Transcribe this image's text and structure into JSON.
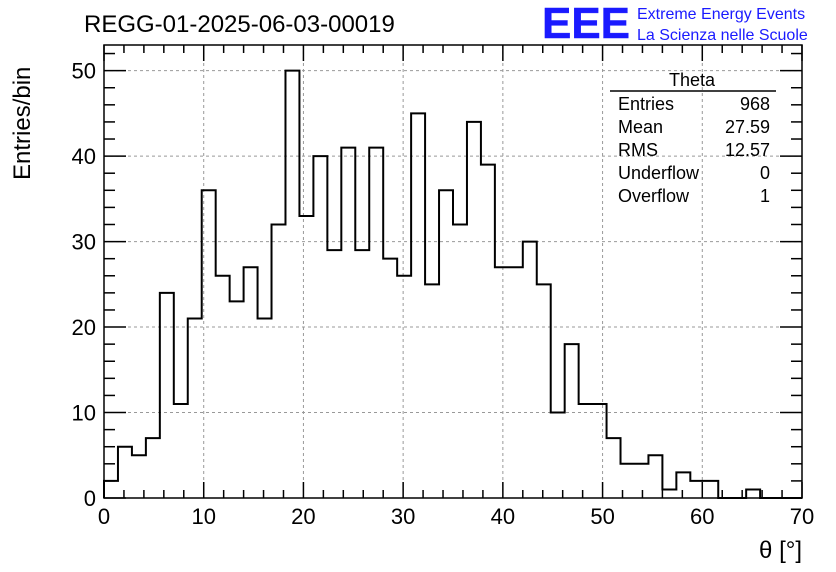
{
  "chart_data": {
    "type": "histogram",
    "title": "REGG-01-2025-06-03-00019",
    "xlabel": "θ [°]",
    "ylabel": "Entries/bin",
    "xlim": [
      0,
      70
    ],
    "ylim": [
      0,
      53
    ],
    "x_ticks": [
      0,
      10,
      20,
      30,
      40,
      50,
      60,
      70
    ],
    "y_ticks": [
      0,
      10,
      20,
      30,
      40,
      50
    ],
    "grid": true,
    "bin_width": 1.4,
    "bin_edges_start": 0,
    "series": [
      {
        "values": [
          2,
          6,
          5,
          7,
          24,
          11,
          21,
          36,
          26,
          23,
          27,
          21,
          32,
          50,
          33,
          40,
          29,
          41,
          29,
          41,
          28,
          26,
          45,
          25,
          36,
          32,
          44,
          39,
          27,
          27,
          30,
          25,
          10,
          18,
          11,
          11,
          7,
          4,
          4,
          5,
          1,
          3,
          2,
          2,
          0,
          0,
          1,
          0,
          0,
          0
        ]
      }
    ],
    "stats_box": {
      "title": "Theta",
      "rows": [
        {
          "label": "Entries",
          "value": "968"
        },
        {
          "label": "Mean",
          "value": "27.59"
        },
        {
          "label": "RMS",
          "value": "12.57"
        },
        {
          "label": "Underflow",
          "value": "0"
        },
        {
          "label": "Overflow",
          "value": "1"
        }
      ]
    }
  },
  "logo": {
    "mark": "EEE",
    "line1": "Extreme Energy Events",
    "line2": "La Scienza nelle Scuole",
    "color": "#1a1aff"
  },
  "colors": {
    "line": "#000000",
    "grid": "#999999"
  }
}
